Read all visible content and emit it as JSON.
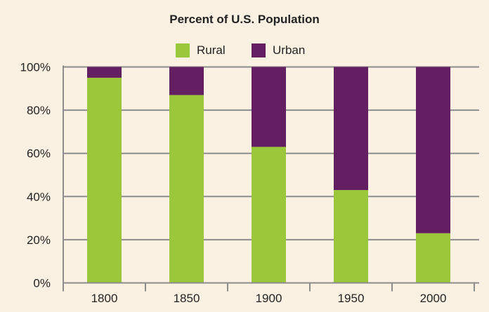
{
  "chart_data": {
    "type": "bar",
    "stacked": true,
    "title": "Percent of U.S. Population",
    "categories": [
      "1800",
      "1850",
      "1900",
      "1950",
      "2000"
    ],
    "series": [
      {
        "name": "Rural",
        "color": "#9bc83a",
        "values": [
          95,
          87,
          63,
          43,
          23
        ]
      },
      {
        "name": "Urban",
        "color": "#641e62",
        "values": [
          5,
          13,
          37,
          57,
          77
        ]
      }
    ],
    "ylim": [
      0,
      100
    ],
    "yticks": [
      "0%",
      "20%",
      "40%",
      "60%",
      "80%",
      "100%"
    ],
    "grid": true,
    "legend": "top"
  }
}
